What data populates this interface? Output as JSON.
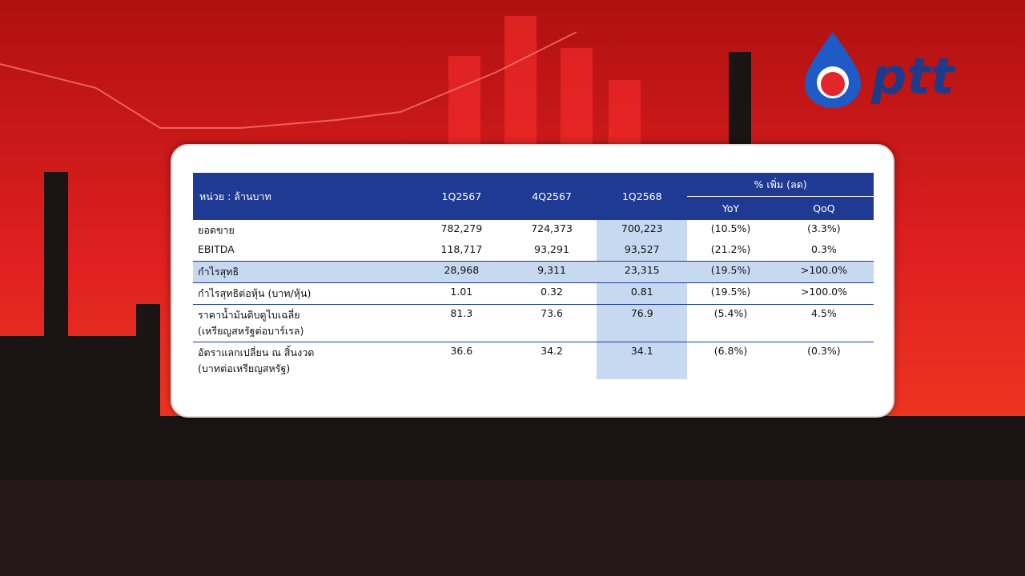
{
  "logo": {
    "text": "ptt"
  },
  "table": {
    "unit_label": "หน่วย : ล้านบาท",
    "columns": [
      "1Q2567",
      "4Q2567",
      "1Q2568"
    ],
    "change_header": "% เพิ่ม (ลด)",
    "change_columns": [
      "YoY",
      "QoQ"
    ],
    "rows": [
      {
        "label": [
          "ยอดขาย"
        ],
        "values": [
          "782,279",
          "724,373",
          "700,223",
          "(10.5%)",
          "(3.3%)"
        ]
      },
      {
        "label": [
          "EBITDA"
        ],
        "values": [
          "118,717",
          "93,291",
          "93,527",
          "(21.2%)",
          "0.3%"
        ]
      },
      {
        "label": [
          "กำไรสุทธิ"
        ],
        "values": [
          "28,968",
          "9,311",
          "23,315",
          "(19.5%)",
          ">100.0%"
        ]
      },
      {
        "label": [
          "กำไรสุทธิต่อหุ้น (บาท/หุ้น)"
        ],
        "values": [
          "1.01",
          "0.32",
          "0.81",
          "(19.5%)",
          ">100.0%"
        ]
      },
      {
        "label": [
          "ราคาน้ำมันดิบดูไบเฉลี่ย",
          "(เหรียญสหรัฐต่อบาร์เรล)"
        ],
        "values": [
          "81.3",
          "73.6",
          "76.9",
          "(5.4%)",
          "4.5%"
        ]
      },
      {
        "label": [
          "อัตราแลกเปลี่ยน ณ สิ้นงวด",
          "(บาทต่อเหรียญสหรัฐ)"
        ],
        "values": [
          "36.6",
          "34.2",
          "34.1",
          "(6.8%)",
          "(0.3%)"
        ]
      }
    ]
  }
}
